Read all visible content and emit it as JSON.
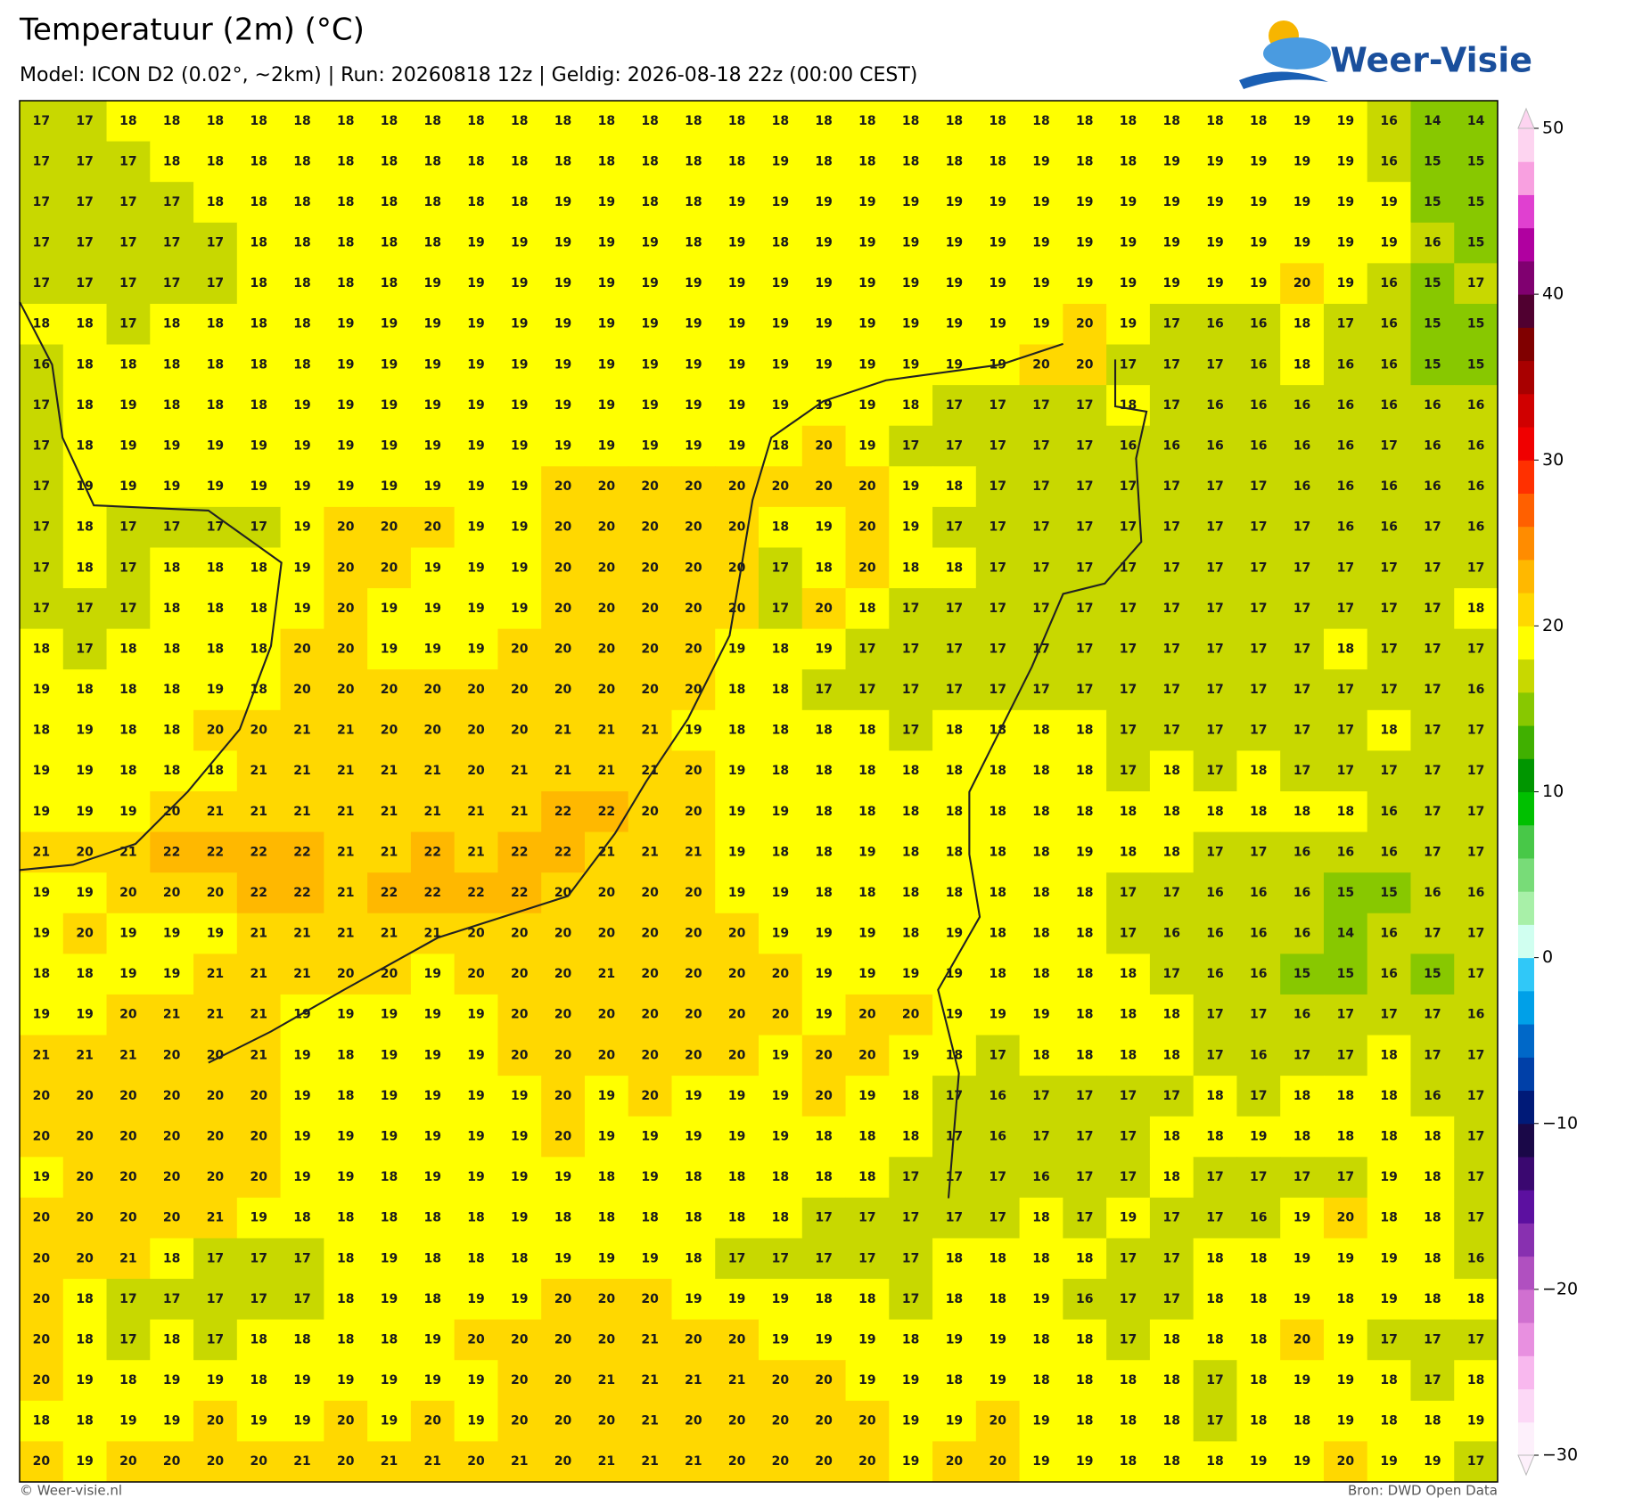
{
  "header": {
    "title": "Temperatuur (2m) (°C)",
    "subtitle": "Model: ICON D2 (0.02°, ~2km)  |  Run: 20260818 12z  |  Geldig: 2026-08-18 22z (00:00 CEST)",
    "logo": "Weer-Visie"
  },
  "grid": {
    "rows": [
      [
        17,
        17,
        18,
        18,
        18,
        18,
        18,
        18,
        18,
        18,
        18,
        18,
        18,
        18,
        18,
        18,
        18,
        18,
        18,
        18,
        18,
        18,
        18,
        18,
        18,
        18,
        18,
        18,
        18,
        19,
        19,
        16,
        14,
        14
      ],
      [
        17,
        17,
        17,
        18,
        18,
        18,
        18,
        18,
        18,
        18,
        18,
        18,
        18,
        18,
        18,
        18,
        18,
        19,
        18,
        18,
        18,
        18,
        18,
        19,
        18,
        18,
        19,
        19,
        19,
        19,
        19,
        16,
        15,
        15
      ],
      [
        17,
        17,
        17,
        17,
        18,
        18,
        18,
        18,
        18,
        18,
        18,
        18,
        19,
        19,
        18,
        18,
        19,
        19,
        19,
        19,
        19,
        19,
        19,
        19,
        19,
        19,
        19,
        19,
        19,
        19,
        19,
        19,
        15,
        15
      ],
      [
        17,
        17,
        17,
        17,
        17,
        18,
        18,
        18,
        18,
        18,
        19,
        19,
        19,
        19,
        19,
        18,
        19,
        18,
        19,
        19,
        19,
        19,
        19,
        19,
        19,
        19,
        19,
        19,
        19,
        19,
        19,
        19,
        16,
        15
      ],
      [
        17,
        17,
        17,
        17,
        17,
        18,
        18,
        18,
        18,
        19,
        19,
        19,
        19,
        19,
        19,
        19,
        19,
        19,
        19,
        19,
        19,
        19,
        19,
        19,
        19,
        19,
        19,
        19,
        19,
        20,
        19,
        16,
        15,
        17
      ],
      [
        18,
        18,
        17,
        18,
        18,
        18,
        18,
        19,
        19,
        19,
        19,
        19,
        19,
        19,
        19,
        19,
        19,
        19,
        19,
        19,
        19,
        19,
        19,
        19,
        20,
        19,
        17,
        16,
        16,
        18,
        17,
        16,
        15,
        15
      ],
      [
        16,
        18,
        18,
        18,
        18,
        18,
        18,
        19,
        19,
        19,
        19,
        19,
        19,
        19,
        19,
        19,
        19,
        19,
        19,
        19,
        19,
        19,
        19,
        20,
        20,
        17,
        17,
        17,
        16,
        18,
        16,
        16,
        15,
        15
      ],
      [
        17,
        18,
        19,
        18,
        18,
        18,
        19,
        19,
        19,
        19,
        19,
        19,
        19,
        19,
        19,
        19,
        19,
        19,
        19,
        19,
        18,
        17,
        17,
        17,
        17,
        18,
        17,
        16,
        16,
        16,
        16,
        16,
        16,
        16
      ],
      [
        17,
        18,
        19,
        19,
        19,
        19,
        19,
        19,
        19,
        19,
        19,
        19,
        19,
        19,
        19,
        19,
        19,
        18,
        20,
        19,
        17,
        17,
        17,
        17,
        17,
        16,
        16,
        16,
        16,
        16,
        16,
        17,
        16,
        16
      ],
      [
        17,
        19,
        19,
        19,
        19,
        19,
        19,
        19,
        19,
        19,
        19,
        19,
        20,
        20,
        20,
        20,
        20,
        20,
        20,
        20,
        19,
        18,
        17,
        17,
        17,
        17,
        17,
        17,
        17,
        16,
        16,
        16,
        16,
        16
      ],
      [
        17,
        18,
        17,
        17,
        17,
        17,
        19,
        20,
        20,
        20,
        19,
        19,
        20,
        20,
        20,
        20,
        20,
        18,
        19,
        20,
        19,
        17,
        17,
        17,
        17,
        17,
        17,
        17,
        17,
        17,
        16,
        16,
        17,
        16
      ],
      [
        17,
        18,
        17,
        18,
        18,
        18,
        19,
        20,
        20,
        19,
        19,
        19,
        20,
        20,
        20,
        20,
        20,
        17,
        18,
        20,
        18,
        18,
        17,
        17,
        17,
        17,
        17,
        17,
        17,
        17,
        17,
        17,
        17,
        17
      ],
      [
        17,
        17,
        17,
        18,
        18,
        18,
        19,
        20,
        19,
        19,
        19,
        19,
        20,
        20,
        20,
        20,
        20,
        17,
        20,
        18,
        17,
        17,
        17,
        17,
        17,
        17,
        17,
        17,
        17,
        17,
        17,
        17,
        17,
        18
      ],
      [
        18,
        17,
        18,
        18,
        18,
        18,
        20,
        20,
        19,
        19,
        19,
        20,
        20,
        20,
        20,
        20,
        19,
        18,
        19,
        17,
        17,
        17,
        17,
        17,
        17,
        17,
        17,
        17,
        17,
        17,
        18,
        17,
        17,
        17
      ],
      [
        19,
        18,
        18,
        18,
        19,
        18,
        20,
        20,
        20,
        20,
        20,
        20,
        20,
        20,
        20,
        20,
        18,
        18,
        17,
        17,
        17,
        17,
        17,
        17,
        17,
        17,
        17,
        17,
        17,
        17,
        17,
        17,
        17,
        16
      ],
      [
        18,
        19,
        18,
        18,
        20,
        20,
        21,
        21,
        20,
        20,
        20,
        20,
        21,
        21,
        21,
        19,
        18,
        18,
        18,
        18,
        17,
        18,
        18,
        18,
        18,
        17,
        17,
        17,
        17,
        17,
        17,
        18,
        17,
        17
      ],
      [
        19,
        19,
        18,
        18,
        18,
        21,
        21,
        21,
        21,
        21,
        20,
        21,
        21,
        21,
        21,
        20,
        19,
        18,
        18,
        18,
        18,
        18,
        18,
        18,
        18,
        17,
        18,
        17,
        18,
        17,
        17,
        17,
        17,
        17
      ],
      [
        19,
        19,
        19,
        20,
        21,
        21,
        21,
        21,
        21,
        21,
        21,
        21,
        22,
        22,
        20,
        20,
        19,
        19,
        18,
        18,
        18,
        18,
        18,
        18,
        18,
        18,
        18,
        18,
        18,
        18,
        18,
        16,
        17,
        17
      ],
      [
        21,
        20,
        21,
        22,
        22,
        22,
        22,
        21,
        21,
        22,
        21,
        22,
        22,
        21,
        21,
        21,
        19,
        18,
        18,
        19,
        18,
        18,
        18,
        18,
        19,
        18,
        18,
        17,
        17,
        16,
        16,
        16,
        17,
        17
      ],
      [
        19,
        19,
        20,
        20,
        20,
        22,
        22,
        21,
        22,
        22,
        22,
        22,
        20,
        20,
        20,
        20,
        19,
        19,
        18,
        18,
        18,
        18,
        18,
        18,
        18,
        17,
        17,
        16,
        16,
        16,
        15,
        15,
        16,
        16
      ],
      [
        19,
        20,
        19,
        19,
        19,
        21,
        21,
        21,
        21,
        21,
        20,
        20,
        20,
        20,
        20,
        20,
        20,
        19,
        19,
        19,
        18,
        19,
        18,
        18,
        18,
        17,
        16,
        16,
        16,
        16,
        14,
        16,
        17,
        17
      ],
      [
        18,
        18,
        19,
        19,
        21,
        21,
        21,
        20,
        20,
        19,
        20,
        20,
        20,
        21,
        20,
        20,
        20,
        20,
        19,
        19,
        19,
        19,
        18,
        18,
        18,
        18,
        17,
        16,
        16,
        15,
        15,
        16,
        15,
        17
      ],
      [
        19,
        19,
        20,
        21,
        21,
        21,
        19,
        19,
        19,
        19,
        19,
        20,
        20,
        20,
        20,
        20,
        20,
        20,
        19,
        20,
        20,
        19,
        19,
        19,
        18,
        18,
        18,
        17,
        17,
        16,
        17,
        17,
        17,
        16
      ],
      [
        21,
        21,
        21,
        20,
        20,
        21,
        19,
        18,
        19,
        19,
        19,
        20,
        20,
        20,
        20,
        20,
        20,
        19,
        20,
        20,
        19,
        18,
        17,
        18,
        18,
        18,
        18,
        17,
        16,
        17,
        17,
        18,
        17,
        17
      ],
      [
        20,
        20,
        20,
        20,
        20,
        20,
        19,
        18,
        19,
        19,
        19,
        19,
        20,
        19,
        20,
        19,
        19,
        19,
        20,
        19,
        18,
        17,
        16,
        17,
        17,
        17,
        17,
        18,
        17,
        18,
        18,
        18,
        16,
        17
      ],
      [
        20,
        20,
        20,
        20,
        20,
        20,
        19,
        19,
        19,
        19,
        19,
        19,
        20,
        19,
        19,
        19,
        19,
        19,
        18,
        18,
        18,
        17,
        16,
        17,
        17,
        17,
        18,
        18,
        19,
        18,
        18,
        18,
        18,
        17
      ],
      [
        19,
        20,
        20,
        20,
        20,
        20,
        19,
        19,
        18,
        19,
        19,
        19,
        19,
        18,
        19,
        18,
        18,
        18,
        18,
        18,
        17,
        17,
        17,
        16,
        17,
        17,
        18,
        17,
        17,
        17,
        17,
        19,
        18,
        17
      ],
      [
        20,
        20,
        20,
        20,
        21,
        19,
        18,
        18,
        18,
        18,
        18,
        19,
        18,
        18,
        18,
        18,
        18,
        18,
        17,
        17,
        17,
        17,
        17,
        18,
        17,
        19,
        17,
        17,
        16,
        19,
        20,
        18,
        18,
        17
      ],
      [
        20,
        20,
        21,
        18,
        17,
        17,
        17,
        18,
        19,
        18,
        18,
        18,
        19,
        19,
        19,
        18,
        17,
        17,
        17,
        17,
        17,
        18,
        18,
        18,
        18,
        17,
        17,
        18,
        18,
        19,
        19,
        19,
        18,
        16
      ],
      [
        20,
        18,
        17,
        17,
        17,
        17,
        17,
        18,
        19,
        18,
        19,
        19,
        20,
        20,
        20,
        19,
        19,
        19,
        18,
        18,
        17,
        18,
        18,
        19,
        16,
        17,
        17,
        18,
        18,
        19,
        18,
        19,
        18,
        18
      ],
      [
        20,
        18,
        17,
        18,
        17,
        18,
        18,
        18,
        18,
        19,
        20,
        20,
        20,
        20,
        21,
        20,
        20,
        19,
        19,
        19,
        18,
        19,
        19,
        18,
        18,
        17,
        18,
        18,
        18,
        20,
        19,
        17,
        17,
        17
      ],
      [
        20,
        19,
        18,
        19,
        19,
        18,
        19,
        19,
        19,
        19,
        19,
        20,
        20,
        21,
        21,
        21,
        21,
        20,
        20,
        19,
        19,
        18,
        19,
        18,
        18,
        18,
        18,
        17,
        18,
        19,
        19,
        18,
        17,
        18
      ],
      [
        18,
        18,
        19,
        19,
        20,
        19,
        19,
        20,
        19,
        20,
        19,
        20,
        20,
        20,
        21,
        20,
        20,
        20,
        20,
        20,
        19,
        19,
        20,
        19,
        18,
        18,
        18,
        17,
        18,
        18,
        19,
        18,
        18,
        19
      ],
      [
        20,
        19,
        20,
        20,
        20,
        20,
        21,
        20,
        21,
        21,
        20,
        21,
        20,
        21,
        21,
        21,
        20,
        20,
        20,
        20,
        19,
        20,
        20,
        19,
        19,
        18,
        18,
        18,
        19,
        19,
        20,
        19,
        19,
        17
      ]
    ]
  },
  "colorbar": {
    "ticks": [
      50,
      40,
      30,
      20,
      10,
      0,
      {
        "value": -10,
        "label": "−10"
      },
      {
        "value": -20,
        "label": "−20"
      },
      {
        "value": -30,
        "label": "−30"
      }
    ],
    "colors": [
      "#fdf0fb",
      "#fcd8f6",
      "#f8b8ee",
      "#e890e0",
      "#d070d0",
      "#b050c0",
      "#8830b0",
      "#5c10a0",
      "#3a0870",
      "#1a0848",
      "#001a78",
      "#0040a8",
      "#0068c8",
      "#00a0e8",
      "#30c8f8",
      "#d0fff0",
      "#a8f0a8",
      "#78dc78",
      "#48c848",
      "#00c000",
      "#009600",
      "#40b000",
      "#88c800",
      "#c8d800",
      "#ffff00",
      "#ffd800",
      "#ffb800",
      "#ff8c00",
      "#ff6000",
      "#ff3000",
      "#f00000",
      "#d00000",
      "#a80000",
      "#800000",
      "#500030",
      "#800070",
      "#b000a0",
      "#e040d0",
      "#f8a0e0",
      "#fdd4f0"
    ]
  },
  "footer": {
    "left": "© Weer-visie.nl",
    "right": "Bron: DWD Open Data"
  }
}
